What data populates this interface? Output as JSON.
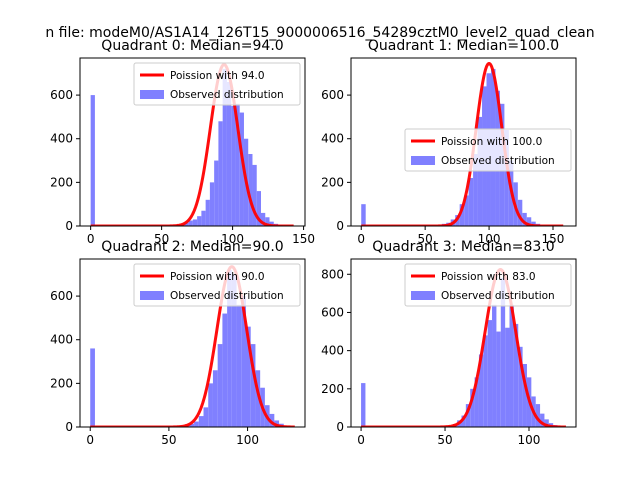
{
  "figure": {
    "suptitle": "n file: modeM0/AS1A14_126T15_9000006516_54289cztM0_level2_quad_clean"
  },
  "colors": {
    "hist_fill": "#8080ff",
    "poisson_line": "#ff0000",
    "axes_edge": "#000000",
    "background": "#ffffff"
  },
  "chart_data": [
    {
      "type": "bar",
      "title": "Quadrant 0: Median=94.0",
      "median": 94.0,
      "xlim": [
        -7.5,
        151
      ],
      "ylim": [
        0,
        770
      ],
      "xticks": [
        0,
        50,
        100,
        150
      ],
      "yticks": [
        0,
        200,
        400,
        600
      ],
      "legend": {
        "location": "upper-right",
        "entries": [
          "Poission with 94.0",
          "Observed distribution"
        ]
      },
      "poisson_label": "Poission with 94.0",
      "hist_label": "Observed distribution",
      "poisson_range": [
        0,
        143
      ],
      "peak": 740,
      "bar_width": 3.0,
      "bars": [
        [
          0,
          600
        ],
        [
          60,
          5
        ],
        [
          63,
          10
        ],
        [
          66,
          15
        ],
        [
          69,
          25
        ],
        [
          72,
          30
        ],
        [
          75,
          45
        ],
        [
          78,
          70
        ],
        [
          81,
          120
        ],
        [
          84,
          200
        ],
        [
          87,
          300
        ],
        [
          90,
          480
        ],
        [
          93,
          720
        ],
        [
          96,
          660
        ],
        [
          99,
          550
        ],
        [
          102,
          560
        ],
        [
          105,
          520
        ],
        [
          108,
          400
        ],
        [
          111,
          330
        ],
        [
          114,
          280
        ],
        [
          117,
          160
        ],
        [
          120,
          60
        ],
        [
          123,
          40
        ],
        [
          126,
          20
        ],
        [
          129,
          10
        ],
        [
          132,
          5
        ]
      ]
    },
    {
      "type": "bar",
      "title": "Quadrant 1: Median=100.0",
      "median": 100.0,
      "xlim": [
        -8,
        168
      ],
      "ylim": [
        0,
        770
      ],
      "xticks": [
        0,
        50,
        100,
        150
      ],
      "yticks": [
        0,
        200,
        400,
        600
      ],
      "legend": {
        "location": "center-right",
        "entries": [
          "Poission with 100.0",
          "Observed distribution"
        ]
      },
      "poisson_label": "Poission with 100.0",
      "hist_label": "Observed distribution",
      "poisson_range": [
        0,
        158
      ],
      "peak": 745,
      "bar_width": 3.5,
      "bars": [
        [
          0,
          100
        ],
        [
          63,
          10
        ],
        [
          66.5,
          15
        ],
        [
          70,
          30
        ],
        [
          73.5,
          50
        ],
        [
          77,
          100
        ],
        [
          80.5,
          140
        ],
        [
          84,
          220
        ],
        [
          87.5,
          330
        ],
        [
          91,
          500
        ],
        [
          94.5,
          640
        ],
        [
          98,
          700
        ],
        [
          101.5,
          720
        ],
        [
          105,
          620
        ],
        [
          108.5,
          560
        ],
        [
          112,
          440
        ],
        [
          115.5,
          300
        ],
        [
          119,
          200
        ],
        [
          122.5,
          120
        ],
        [
          126,
          60
        ],
        [
          129.5,
          40
        ],
        [
          133,
          20
        ],
        [
          136.5,
          10
        ]
      ]
    },
    {
      "type": "bar",
      "title": "Quadrant 2: Median=90.0",
      "median": 90.0,
      "xlim": [
        -6.5,
        136.5
      ],
      "ylim": [
        0,
        770
      ],
      "xticks": [
        0,
        50,
        100
      ],
      "yticks": [
        0,
        200,
        400,
        600
      ],
      "legend": {
        "location": "upper-right",
        "entries": [
          "Poission with 90.0",
          "Observed distribution"
        ]
      },
      "poisson_label": "Poission with 90.0",
      "hist_label": "Observed distribution",
      "poisson_range": [
        0,
        130
      ],
      "peak": 735,
      "bar_width": 3.0,
      "bars": [
        [
          0,
          360
        ],
        [
          60,
          5
        ],
        [
          63,
          15
        ],
        [
          66,
          25
        ],
        [
          69,
          50
        ],
        [
          72,
          90
        ],
        [
          75,
          200
        ],
        [
          78,
          260
        ],
        [
          81,
          380
        ],
        [
          84,
          520
        ],
        [
          87,
          720
        ],
        [
          90,
          700
        ],
        [
          93,
          560
        ],
        [
          96,
          600
        ],
        [
          99,
          460
        ],
        [
          102,
          380
        ],
        [
          105,
          260
        ],
        [
          108,
          180
        ],
        [
          111,
          100
        ],
        [
          114,
          60
        ],
        [
          117,
          30
        ],
        [
          120,
          15
        ],
        [
          123,
          5
        ]
      ]
    },
    {
      "type": "bar",
      "title": "Quadrant 3: Median=83.0",
      "median": 83.0,
      "xlim": [
        -6,
        128
      ],
      "ylim": [
        0,
        880
      ],
      "xticks": [
        0,
        50,
        100
      ],
      "yticks": [
        0,
        200,
        400,
        600,
        800
      ],
      "legend": {
        "location": "upper-right",
        "entries": [
          "Poission with 83.0",
          "Observed distribution"
        ]
      },
      "poisson_label": "Poission with 83.0",
      "hist_label": "Observed distribution",
      "poisson_range": [
        0,
        122
      ],
      "peak": 825,
      "bar_width": 2.6,
      "bars": [
        [
          0,
          230
        ],
        [
          52,
          5
        ],
        [
          54.6,
          15
        ],
        [
          57.2,
          35
        ],
        [
          59.8,
          60
        ],
        [
          62.4,
          120
        ],
        [
          65,
          200
        ],
        [
          67.6,
          260
        ],
        [
          70.2,
          380
        ],
        [
          72.8,
          480
        ],
        [
          75.4,
          560
        ],
        [
          78,
          640
        ],
        [
          80.6,
          500
        ],
        [
          83.2,
          780
        ],
        [
          85.8,
          520
        ],
        [
          88.4,
          640
        ],
        [
          91,
          540
        ],
        [
          93.6,
          420
        ],
        [
          96.2,
          330
        ],
        [
          98.8,
          260
        ],
        [
          101.4,
          160
        ],
        [
          104,
          120
        ],
        [
          106.6,
          70
        ],
        [
          109.2,
          40
        ],
        [
          111.8,
          20
        ],
        [
          114.4,
          10
        ]
      ]
    }
  ]
}
